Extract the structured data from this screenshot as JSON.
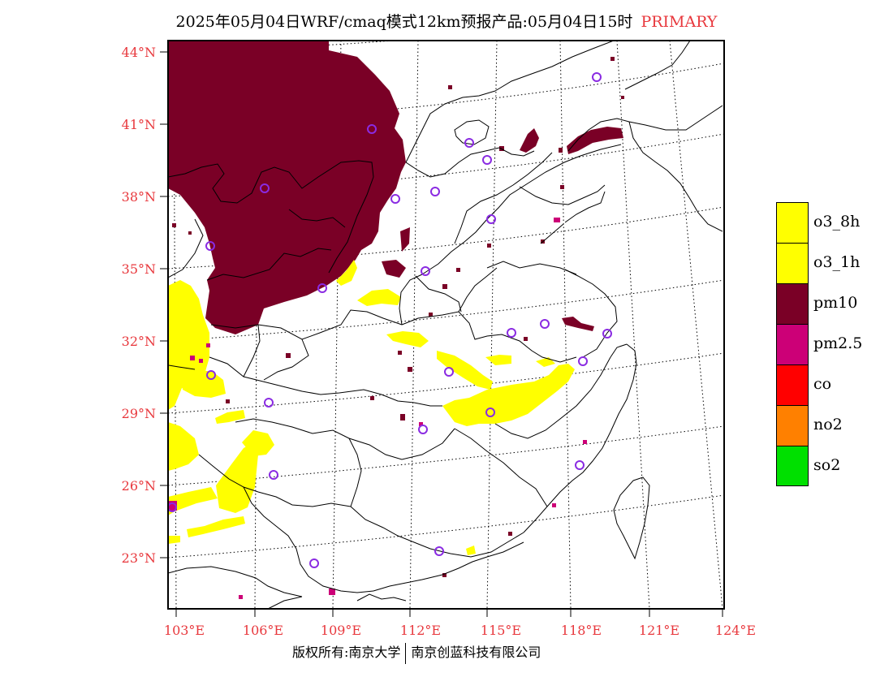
{
  "title": {
    "main": "2025年05月04日WRF/cmaq模式12km预报产品:05月04日15时",
    "tag": "PRIMARY"
  },
  "axes": {
    "lat_labels": [
      "44°N",
      "41°N",
      "38°N",
      "35°N",
      "32°N",
      "29°N",
      "26°N",
      "23°N"
    ],
    "lon_labels": [
      "103°E",
      "106°E",
      "109°E",
      "112°E",
      "115°E",
      "118°E",
      "121°E",
      "124°E"
    ]
  },
  "legend": {
    "items": [
      {
        "label": "o3_8h",
        "color": "#ffff00"
      },
      {
        "label": "o3_1h",
        "color": "#ffff00"
      },
      {
        "label": "pm10",
        "color": "#7a0026"
      },
      {
        "label": "pm2.5",
        "color": "#cc0077"
      },
      {
        "label": "co",
        "color": "#ff0000"
      },
      {
        "label": "no2",
        "color": "#ff8000"
      },
      {
        "label": "so2",
        "color": "#00e000"
      }
    ]
  },
  "colors": {
    "pm10": "#7a0026",
    "o3": "#ffff00",
    "station": "#8a2be2",
    "axis_text": "#e8383d"
  },
  "footer": {
    "left": "版权所有:南京大学",
    "right": "南京创蓝科技有限公司"
  }
}
